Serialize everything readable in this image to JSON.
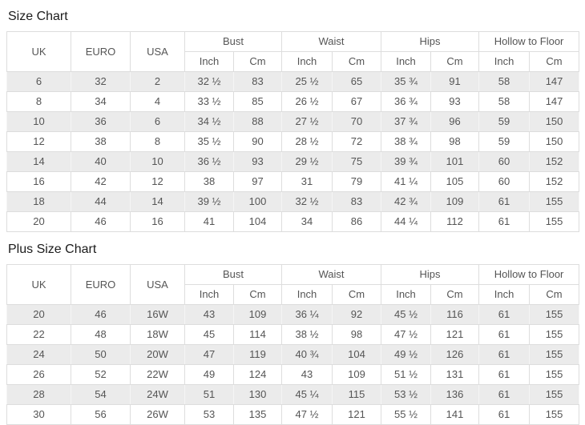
{
  "titles": {
    "size_chart": "Size Chart",
    "plus_size_chart": "Plus Size Chart"
  },
  "header": {
    "uk": "UK",
    "euro": "EURO",
    "usa": "USA",
    "bust": "Bust",
    "waist": "Waist",
    "hips": "Hips",
    "hollow_to_floor": "Hollow to Floor",
    "inch": "Inch",
    "cm": "Cm"
  },
  "size_chart": {
    "rows": [
      [
        "6",
        "32",
        "2",
        "32 ½",
        "83",
        "25 ½",
        "65",
        "35 ¾",
        "91",
        "58",
        "147"
      ],
      [
        "8",
        "34",
        "4",
        "33 ½",
        "85",
        "26 ½",
        "67",
        "36 ¾",
        "93",
        "58",
        "147"
      ],
      [
        "10",
        "36",
        "6",
        "34 ½",
        "88",
        "27 ½",
        "70",
        "37 ¾",
        "96",
        "59",
        "150"
      ],
      [
        "12",
        "38",
        "8",
        "35 ½",
        "90",
        "28 ½",
        "72",
        "38 ¾",
        "98",
        "59",
        "150"
      ],
      [
        "14",
        "40",
        "10",
        "36 ½",
        "93",
        "29 ½",
        "75",
        "39 ¾",
        "101",
        "60",
        "152"
      ],
      [
        "16",
        "42",
        "12",
        "38",
        "97",
        "31",
        "79",
        "41 ¼",
        "105",
        "60",
        "152"
      ],
      [
        "18",
        "44",
        "14",
        "39 ½",
        "100",
        "32 ½",
        "83",
        "42 ¾",
        "109",
        "61",
        "155"
      ],
      [
        "20",
        "46",
        "16",
        "41",
        "104",
        "34",
        "86",
        "44 ¼",
        "112",
        "61",
        "155"
      ]
    ]
  },
  "plus_size_chart": {
    "rows": [
      [
        "20",
        "46",
        "16W",
        "43",
        "109",
        "36 ¼",
        "92",
        "45 ½",
        "116",
        "61",
        "155"
      ],
      [
        "22",
        "48",
        "18W",
        "45",
        "114",
        "38 ½",
        "98",
        "47 ½",
        "121",
        "61",
        "155"
      ],
      [
        "24",
        "50",
        "20W",
        "47",
        "119",
        "40 ¾",
        "104",
        "49 ½",
        "126",
        "61",
        "155"
      ],
      [
        "26",
        "52",
        "22W",
        "49",
        "124",
        "43",
        "109",
        "51 ½",
        "131",
        "61",
        "155"
      ],
      [
        "28",
        "54",
        "24W",
        "51",
        "130",
        "45 ¼",
        "115",
        "53 ½",
        "136",
        "61",
        "155"
      ],
      [
        "30",
        "56",
        "26W",
        "53",
        "135",
        "47 ½",
        "121",
        "55 ½",
        "141",
        "61",
        "155"
      ]
    ]
  },
  "colors": {
    "stripe": "#ebebeb",
    "border": "#dddddd",
    "cell_text": "#555555",
    "title_text": "#1b1b1b"
  }
}
